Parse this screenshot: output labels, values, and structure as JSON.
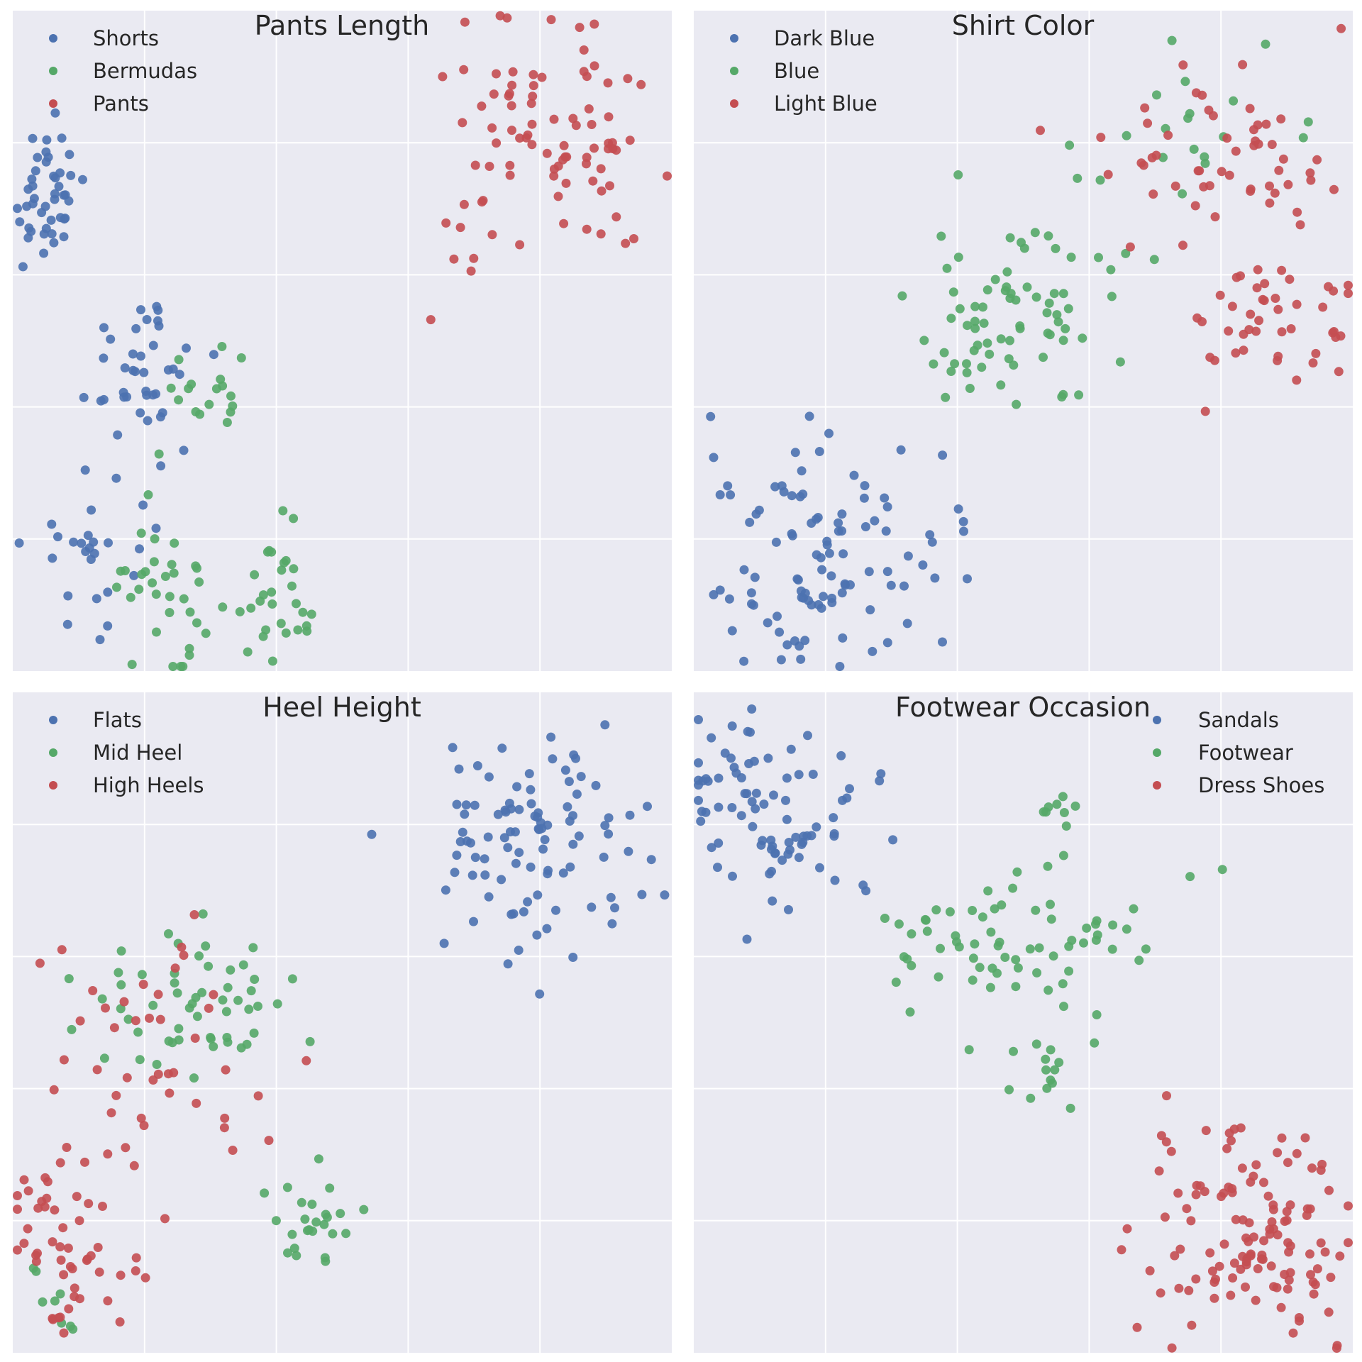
{
  "colors": {
    "blue": "#4c72b0",
    "green": "#55a868",
    "red": "#c44e52"
  },
  "chart_data": [
    {
      "type": "scatter",
      "title": "Pants Length",
      "xlabel": "",
      "ylabel": "",
      "xlim": [
        0,
        10
      ],
      "ylim": [
        0,
        10
      ],
      "grid": true,
      "legend_position": "top-left",
      "series": [
        {
          "name": "Shorts",
          "color": "#4c72b0",
          "clusters": [
            {
              "cx": 0.5,
              "cy": 7.1,
              "sx": 0.3,
              "sy": 0.55,
              "n": 45
            },
            {
              "cx": 2.0,
              "cy": 4.7,
              "sx": 0.45,
              "sy": 0.6,
              "n": 40
            },
            {
              "cx": 1.3,
              "cy": 1.8,
              "sx": 0.5,
              "sy": 0.55,
              "n": 25
            }
          ]
        },
        {
          "name": "Bermudas",
          "color": "#55a868",
          "clusters": [
            {
              "cx": 3.0,
              "cy": 4.1,
              "sx": 0.3,
              "sy": 0.4,
              "n": 18
            },
            {
              "cx": 2.3,
              "cy": 1.3,
              "sx": 0.45,
              "sy": 0.5,
              "n": 35
            },
            {
              "cx": 4.0,
              "cy": 0.9,
              "sx": 0.25,
              "sy": 0.6,
              "n": 30
            }
          ]
        },
        {
          "name": "Pants",
          "color": "#c44e52",
          "clusters": [
            {
              "cx": 8.1,
              "cy": 7.9,
              "sx": 0.9,
              "sy": 0.9,
              "n": 90
            }
          ]
        }
      ]
    },
    {
      "type": "scatter",
      "title": "Shirt Color",
      "xlabel": "",
      "ylabel": "",
      "xlim": [
        0,
        10
      ],
      "ylim": [
        0,
        10
      ],
      "grid": true,
      "legend_position": "top-left",
      "series": [
        {
          "name": "Dark Blue",
          "color": "#4c72b0",
          "clusters": [
            {
              "cx": 1.9,
              "cy": 1.8,
              "sx": 0.95,
              "sy": 0.9,
              "n": 110
            }
          ]
        },
        {
          "name": "Blue",
          "color": "#55a868",
          "clusters": [
            {
              "cx": 4.9,
              "cy": 5.3,
              "sx": 0.85,
              "sy": 0.7,
              "n": 75
            },
            {
              "cx": 7.5,
              "cy": 8.3,
              "sx": 1.0,
              "sy": 0.6,
              "n": 20
            }
          ]
        },
        {
          "name": "Light Blue",
          "color": "#c44e52",
          "clusters": [
            {
              "cx": 7.8,
              "cy": 7.9,
              "sx": 1.0,
              "sy": 0.75,
              "n": 55
            },
            {
              "cx": 8.8,
              "cy": 5.4,
              "sx": 0.7,
              "sy": 0.6,
              "n": 45
            }
          ]
        }
      ]
    },
    {
      "type": "scatter",
      "title": "Heel Height",
      "xlabel": "",
      "ylabel": "",
      "xlim": [
        0,
        10
      ],
      "ylim": [
        0,
        10
      ],
      "grid": true,
      "legend_position": "top-left",
      "series": [
        {
          "name": "Flats",
          "color": "#4c72b0",
          "clusters": [
            {
              "cx": 8.0,
              "cy": 7.8,
              "sx": 0.95,
              "sy": 0.9,
              "n": 100
            }
          ]
        },
        {
          "name": "Mid Heel",
          "color": "#55a868",
          "clusters": [
            {
              "cx": 2.7,
              "cy": 5.3,
              "sx": 0.85,
              "sy": 0.6,
              "n": 55
            },
            {
              "cx": 4.5,
              "cy": 2.0,
              "sx": 0.35,
              "sy": 0.35,
              "n": 25
            },
            {
              "cx": 0.5,
              "cy": 0.8,
              "sx": 0.4,
              "sy": 0.4,
              "n": 8
            }
          ]
        },
        {
          "name": "High Heels",
          "color": "#c44e52",
          "clusters": [
            {
              "cx": 2.2,
              "cy": 4.4,
              "sx": 0.8,
              "sy": 1.0,
              "n": 45
            },
            {
              "cx": 0.8,
              "cy": 1.5,
              "sx": 0.6,
              "sy": 0.8,
              "n": 60
            }
          ]
        }
      ]
    },
    {
      "type": "scatter",
      "title": "Footwear Occasion",
      "xlabel": "",
      "ylabel": "",
      "xlim": [
        0,
        10
      ],
      "ylim": [
        0,
        10
      ],
      "grid": true,
      "legend_position": "top-right",
      "series": [
        {
          "name": "Sandals",
          "color": "#4c72b0",
          "clusters": [
            {
              "cx": 1.0,
              "cy": 8.2,
              "sx": 0.75,
              "sy": 0.8,
              "n": 95
            }
          ]
        },
        {
          "name": "Footwear",
          "color": "#55a868",
          "clusters": [
            {
              "cx": 4.8,
              "cy": 6.2,
              "sx": 1.1,
              "sy": 0.6,
              "n": 70
            },
            {
              "cx": 5.5,
              "cy": 8.2,
              "sx": 0.15,
              "sy": 0.15,
              "n": 8
            },
            {
              "cx": 5.5,
              "cy": 4.3,
              "sx": 0.35,
              "sy": 0.35,
              "n": 14
            }
          ]
        },
        {
          "name": "Dress Shoes",
          "color": "#c44e52",
          "clusters": [
            {
              "cx": 8.5,
              "cy": 1.8,
              "sx": 0.85,
              "sy": 0.85,
              "n": 130
            }
          ]
        }
      ]
    }
  ]
}
